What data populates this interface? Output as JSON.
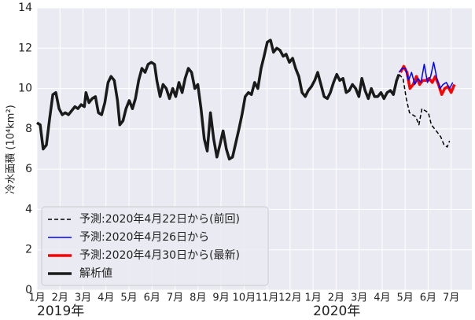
{
  "chart_data": {
    "type": "line",
    "ylabel": "冷水面積 (10⁴km²)",
    "ylim": [
      0,
      14
    ],
    "yticks": [
      0,
      2,
      4,
      6,
      8,
      10,
      12,
      14
    ],
    "xlim": [
      0,
      18.9
    ],
    "xticks": [
      {
        "value": 0,
        "label": "1月"
      },
      {
        "value": 1,
        "label": "2月"
      },
      {
        "value": 2,
        "label": "3月"
      },
      {
        "value": 3,
        "label": "4月"
      },
      {
        "value": 4,
        "label": "5月"
      },
      {
        "value": 5,
        "label": "6月"
      },
      {
        "value": 6,
        "label": "7月"
      },
      {
        "value": 7,
        "label": "8月"
      },
      {
        "value": 8,
        "label": "9月"
      },
      {
        "value": 9,
        "label": "10月"
      },
      {
        "value": 10,
        "label": "11月"
      },
      {
        "value": 11,
        "label": "12月"
      },
      {
        "value": 12,
        "label": "1月"
      },
      {
        "value": 13,
        "label": "2月"
      },
      {
        "value": 14,
        "label": "3月"
      },
      {
        "value": 15,
        "label": "4月"
      },
      {
        "value": 16,
        "label": "5月"
      },
      {
        "value": 17,
        "label": "6月"
      },
      {
        "value": 18,
        "label": "7月"
      }
    ],
    "year_labels": [
      {
        "value": 0,
        "label": "2019年"
      },
      {
        "value": 12,
        "label": "2020年"
      }
    ],
    "grid": true,
    "legend": "lower left",
    "series": [
      {
        "name": "予測:2020年4月22日から(前回)",
        "color": "#000000",
        "linestyle": "dashed",
        "linewidth": 1.5,
        "x": [
          15.73,
          15.91,
          16.05,
          16.19,
          16.32,
          16.46,
          16.6,
          16.73,
          16.87,
          17.01,
          17.14,
          17.28,
          17.42,
          17.55,
          17.69,
          17.83,
          17.93
        ],
        "values": [
          10.7,
          10.5,
          9.5,
          8.8,
          8.7,
          8.6,
          8.2,
          9.0,
          8.9,
          8.8,
          8.2,
          8.0,
          7.8,
          7.6,
          7.2,
          7.1,
          7.4
        ]
      },
      {
        "name": "予測:2020年4月26日から",
        "color": "#0000ff",
        "linestyle": "solid",
        "linewidth": 1.5,
        "x": [
          15.73,
          15.87,
          16.01,
          16.15,
          16.28,
          16.42,
          16.56,
          16.69,
          16.83,
          16.97,
          17.11,
          17.24,
          17.38,
          17.52,
          17.65,
          17.79,
          17.93,
          18.07
        ],
        "values": [
          10.8,
          11.0,
          11.0,
          10.4,
          10.8,
          10.2,
          10.5,
          10.3,
          11.2,
          10.3,
          10.6,
          11.3,
          10.5,
          10.0,
          10.2,
          10.3,
          10.0,
          10.3
        ]
      },
      {
        "name": "予測:2020年4月30日から(最新)",
        "color": "#ff0000",
        "linestyle": "solid",
        "linewidth": 3.5,
        "x": [
          15.8,
          15.94,
          16.08,
          16.21,
          16.35,
          16.49,
          16.63,
          16.76,
          16.9,
          17.04,
          17.18,
          17.31,
          17.45,
          17.59,
          17.72,
          17.86,
          18.0,
          18.14
        ],
        "values": [
          10.8,
          11.1,
          10.8,
          10.0,
          10.2,
          10.6,
          10.2,
          10.4,
          10.4,
          10.5,
          10.3,
          10.6,
          10.2,
          9.7,
          10.0,
          10.1,
          9.8,
          10.2
        ]
      },
      {
        "name": "解析値",
        "color": "#1a1a1a",
        "linestyle": "solid",
        "linewidth": 3.5,
        "x": [
          0,
          0.14,
          0.27,
          0.41,
          0.55,
          0.69,
          0.82,
          0.96,
          1.1,
          1.23,
          1.37,
          1.51,
          1.65,
          1.78,
          1.92,
          2.06,
          2.13,
          2.26,
          2.4,
          2.54,
          2.67,
          2.81,
          2.95,
          3.09,
          3.22,
          3.36,
          3.5,
          3.6,
          3.74,
          3.87,
          4.01,
          4.15,
          4.28,
          4.42,
          4.56,
          4.7,
          4.83,
          4.97,
          5.11,
          5.21,
          5.35,
          5.48,
          5.62,
          5.76,
          5.9,
          6.03,
          6.17,
          6.31,
          6.44,
          6.58,
          6.72,
          6.86,
          6.99,
          7.13,
          7.27,
          7.4,
          7.54,
          7.68,
          7.82,
          7.95,
          8.09,
          8.23,
          8.36,
          8.5,
          8.64,
          8.78,
          8.91,
          9.05,
          9.19,
          9.32,
          9.46,
          9.6,
          9.74,
          9.87,
          10.01,
          10.15,
          10.28,
          10.42,
          10.56,
          10.7,
          10.83,
          10.97,
          11.11,
          11.24,
          11.38,
          11.52,
          11.66,
          11.79,
          11.93,
          12.07,
          12.2,
          12.34,
          12.48,
          12.62,
          12.75,
          12.89,
          13.03,
          13.16,
          13.3,
          13.44,
          13.57,
          13.71,
          13.85,
          13.99,
          14.12,
          14.26,
          14.4,
          14.53,
          14.67,
          14.81,
          14.95,
          15.08,
          15.22,
          15.36,
          15.49,
          15.63,
          15.73
        ],
        "values": [
          8.3,
          8.2,
          7.0,
          7.2,
          8.5,
          9.7,
          9.8,
          9.0,
          8.7,
          8.8,
          8.7,
          8.9,
          9.1,
          9.0,
          9.2,
          9.1,
          9.8,
          9.3,
          9.5,
          9.6,
          8.8,
          8.7,
          9.3,
          10.3,
          10.6,
          10.4,
          9.4,
          8.2,
          8.4,
          9.0,
          9.4,
          9.0,
          9.5,
          10.4,
          11.0,
          10.8,
          11.2,
          11.3,
          11.2,
          10.4,
          9.6,
          10.2,
          10.0,
          9.5,
          10.0,
          9.6,
          10.3,
          9.8,
          10.5,
          11.0,
          10.8,
          10.0,
          10.2,
          9.0,
          7.5,
          6.9,
          8.8,
          7.5,
          6.6,
          7.2,
          7.9,
          7.0,
          6.5,
          6.6,
          7.3,
          8.0,
          8.7,
          9.6,
          9.8,
          9.7,
          10.3,
          10.0,
          11.0,
          11.6,
          12.3,
          12.4,
          11.8,
          12.0,
          11.9,
          11.6,
          11.7,
          11.3,
          11.5,
          11.0,
          10.6,
          9.8,
          9.6,
          9.9,
          10.1,
          10.4,
          10.8,
          10.2,
          9.6,
          9.5,
          9.8,
          10.3,
          10.7,
          10.4,
          10.5,
          9.8,
          9.9,
          10.2,
          10.0,
          9.6,
          10.5,
          9.9,
          9.5,
          10.0,
          9.6,
          9.6,
          9.8,
          9.5,
          9.8,
          9.9,
          9.7,
          10.4,
          10.7
        ]
      }
    ]
  }
}
